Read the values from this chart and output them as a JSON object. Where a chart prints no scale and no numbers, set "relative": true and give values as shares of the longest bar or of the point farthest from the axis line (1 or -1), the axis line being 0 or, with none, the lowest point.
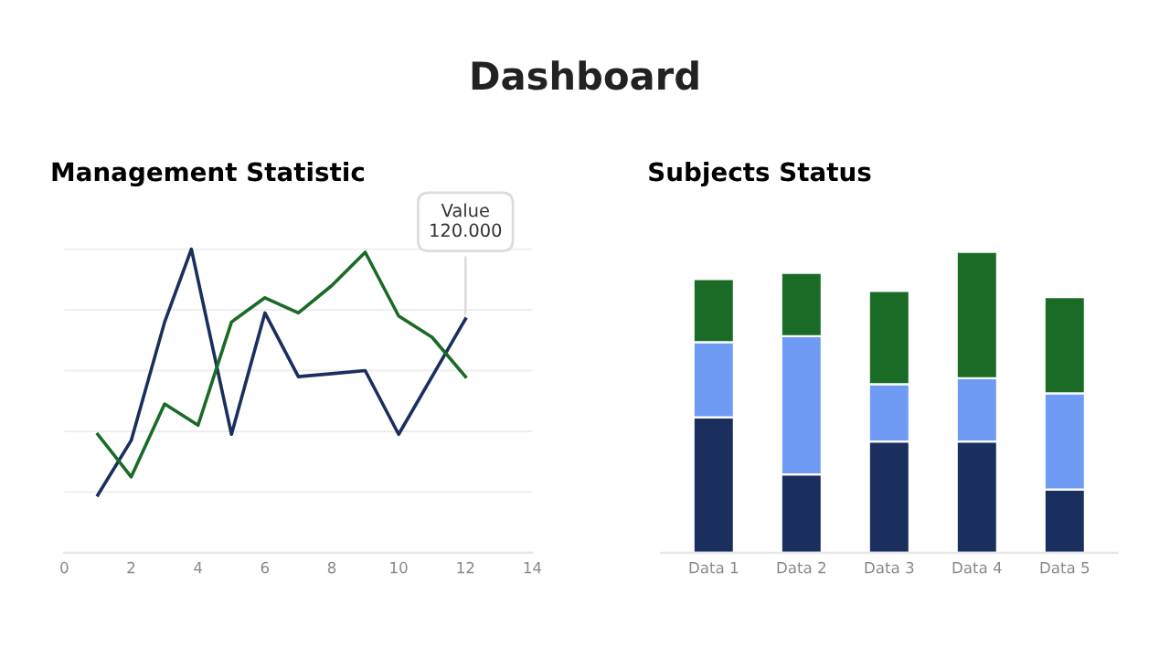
{
  "chart_data": [
    {
      "type": "line",
      "title": "Management Statistic",
      "relative": true,
      "grid": "y",
      "xlim": [
        0,
        14
      ],
      "xticks": [
        0,
        2,
        4,
        6,
        8,
        10,
        12,
        14
      ],
      "annotations": [
        "Dashboard",
        {
          "text": "Value\n120.000",
          "x": 12,
          "y": 0.77
        }
      ],
      "series": [
        {
          "color": "#1a2f5e",
          "x": [
            1,
            2,
            3,
            3.8,
            5,
            6,
            7,
            8,
            9,
            10,
            11,
            12
          ],
          "values": [
            0.19,
            0.37,
            0.76,
            1.0,
            0.39,
            0.79,
            0.58,
            0.59,
            0.6,
            0.39,
            0.58,
            0.77
          ]
        },
        {
          "color": "#1a6b25",
          "x": [
            1,
            2,
            3,
            4,
            5,
            6,
            7,
            8,
            9,
            10,
            11,
            12
          ],
          "values": [
            0.39,
            0.25,
            0.49,
            0.42,
            0.76,
            0.84,
            0.79,
            0.88,
            0.99,
            0.78,
            0.71,
            0.58
          ]
        }
      ]
    },
    {
      "type": "bar",
      "title": "Subjects Status",
      "relative": true,
      "stacked": true,
      "categories": [
        "Data 1",
        "Data 2",
        "Data 3",
        "Data 4",
        "Data 5"
      ],
      "series": [
        {
          "color": "#1a2f5e",
          "values": [
            0.45,
            0.26,
            0.37,
            0.37,
            0.21
          ]
        },
        {
          "color": "#6f9bf5",
          "values": [
            0.25,
            0.46,
            0.19,
            0.21,
            0.32
          ]
        },
        {
          "color": "#1a6b25",
          "values": [
            0.21,
            0.21,
            0.31,
            0.42,
            0.32
          ]
        }
      ]
    }
  ]
}
